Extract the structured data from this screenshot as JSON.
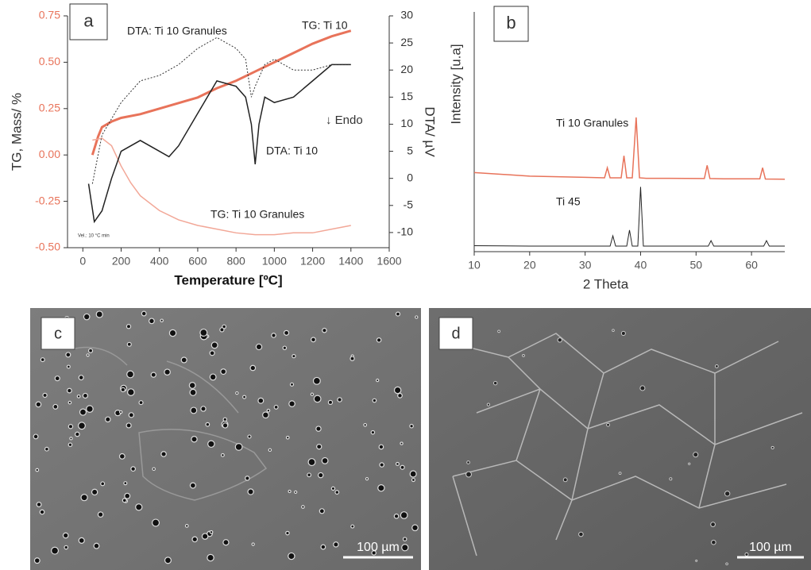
{
  "chart_data": [
    {
      "type": "line",
      "panel": "a",
      "x_label": "Temperature [ºC]",
      "y_label": "TG, Mass/ %",
      "y2_label": "DTA/ µV",
      "xlim": [
        -80,
        1600
      ],
      "xticks": [
        0,
        200,
        400,
        600,
        800,
        1000,
        1200,
        1400,
        1600
      ],
      "ylim": [
        -0.5,
        0.75
      ],
      "yticks": [
        {
          "value": -0.5,
          "label": "-0.50"
        },
        -0.25,
        {
          "value": 0,
          "label": "0.00"
        },
        0.25,
        {
          "value": 0.5,
          "label": "0.50"
        },
        0.75
      ],
      "y2lim": [
        -12.8,
        30
      ],
      "y2ticks": [
        -10,
        -5,
        0,
        5,
        10,
        15,
        20,
        25,
        30
      ],
      "series": [
        {
          "name": "TG: Ti 10",
          "color": "#e8735a",
          "width": 3,
          "style": "solid",
          "x": [
            50,
            80,
            100,
            150,
            200,
            300,
            400,
            500,
            600,
            700,
            800,
            900,
            1000,
            1100,
            1200,
            1300,
            1400
          ],
          "values": [
            0.0,
            0.1,
            0.15,
            0.18,
            0.2,
            0.22,
            0.25,
            0.28,
            0.31,
            0.36,
            0.4,
            0.45,
            0.5,
            0.55,
            0.6,
            0.64,
            0.67
          ]
        },
        {
          "name": "TG: Ti 10 Granules",
          "color": "#f2a797",
          "width": 1.5,
          "style": "solid",
          "x": [
            50,
            100,
            150,
            200,
            250,
            300,
            400,
            500,
            600,
            700,
            800,
            900,
            1000,
            1100,
            1200,
            1300,
            1400
          ],
          "values": [
            0.08,
            0.09,
            0.05,
            -0.06,
            -0.15,
            -0.22,
            -0.3,
            -0.35,
            -0.38,
            -0.4,
            -0.42,
            -0.43,
            -0.43,
            -0.42,
            -0.42,
            -0.4,
            -0.38
          ]
        },
        {
          "name": "DTA: Ti 10",
          "color": "#222222",
          "width": 1.5,
          "style": "solid",
          "axis": "y2",
          "x": [
            30,
            60,
            100,
            150,
            200,
            300,
            400,
            450,
            500,
            600,
            700,
            800,
            850,
            880,
            900,
            920,
            950,
            1000,
            1100,
            1200,
            1300,
            1400
          ],
          "values": [
            -1,
            -8,
            -6,
            0,
            5,
            7,
            5,
            4,
            6,
            12,
            18,
            17,
            15,
            10,
            2.6,
            10,
            15,
            14,
            15,
            18,
            21,
            21
          ]
        },
        {
          "name": "DTA: Ti 10 Granules",
          "color": "#333333",
          "width": 1,
          "style": "dotted",
          "axis": "y2",
          "x": [
            50,
            100,
            200,
            300,
            400,
            500,
            600,
            700,
            800,
            850,
            880,
            900,
            950,
            1000,
            1100,
            1200,
            1300,
            1400
          ],
          "values": [
            -1,
            8,
            14,
            18,
            19,
            21,
            24,
            26,
            24,
            22,
            15,
            17,
            21,
            22,
            20,
            20,
            21,
            21
          ]
        }
      ],
      "annotations": [
        "↓ Endo",
        "Vel.: 10 °C min"
      ]
    },
    {
      "type": "line",
      "panel": "b",
      "x_label": "2 Theta",
      "y_label": "Intensity [u.a]",
      "xlim": [
        10,
        66
      ],
      "xticks": [
        10,
        20,
        30,
        40,
        50,
        60
      ],
      "ylim": [
        0,
        100
      ],
      "series": [
        {
          "name": "Ti 10 Granules",
          "color": "#e8735a",
          "width": 1.5,
          "style": "solid",
          "x": [
            10,
            20,
            30,
            33.5,
            34,
            34.5,
            36.5,
            37,
            37.5,
            38.5,
            39.2,
            39.8,
            41,
            45,
            51.5,
            52,
            52.5,
            55,
            61.5,
            62,
            62.5,
            66
          ],
          "values": [
            33,
            31.5,
            31,
            30.8,
            35,
            30.8,
            30.8,
            40,
            30.8,
            30.8,
            56,
            30.8,
            30.6,
            30.6,
            30.5,
            36,
            30.5,
            30.4,
            30.4,
            35,
            30.3,
            30.2
          ]
        },
        {
          "name": "Ti 45",
          "color": "#222222",
          "width": 1,
          "style": "solid",
          "x": [
            10,
            20,
            30,
            34.5,
            35,
            35.5,
            37.5,
            38,
            38.5,
            39.5,
            40,
            40.5,
            45,
            52.2,
            52.7,
            53.2,
            62.2,
            62.7,
            63.2,
            66
          ],
          "values": [
            2.5,
            2.3,
            2.3,
            2.3,
            6.6,
            2.3,
            2.3,
            9,
            2.3,
            2.3,
            27,
            2.3,
            2.3,
            2.3,
            4.6,
            2.3,
            2.3,
            4.6,
            2.3,
            2.3
          ]
        }
      ]
    }
  ],
  "micrographs": [
    {
      "label": "c",
      "scale_bar": "100 µm"
    },
    {
      "label": "d",
      "scale_bar": "100 µm"
    }
  ]
}
